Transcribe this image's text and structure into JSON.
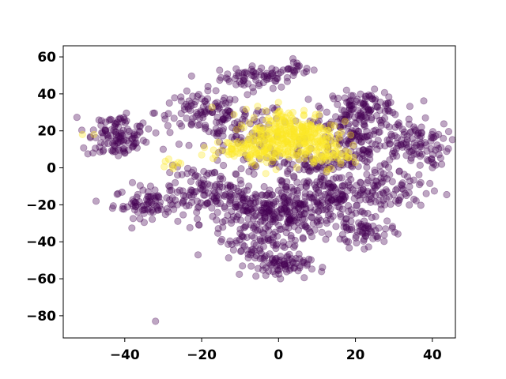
{
  "chart_data": {
    "type": "scatter",
    "title": "",
    "xlabel": "",
    "ylabel": "",
    "xlim": [
      -56,
      46
    ],
    "ylim": [
      -92,
      66
    ],
    "x_ticks": [
      -40,
      -20,
      0,
      20,
      40
    ],
    "y_ticks": [
      -80,
      -60,
      -40,
      -20,
      0,
      20,
      40,
      60
    ],
    "x_tick_labels": [
      "−40",
      "−20",
      "0",
      "20",
      "40"
    ],
    "y_tick_labels": [
      "−80",
      "−60",
      "−40",
      "−20",
      "0",
      "20",
      "40",
      "60"
    ],
    "grid": false,
    "legend": "none",
    "marker_alpha": 0.35,
    "series": [
      {
        "color": "#440154",
        "count": 1700,
        "clusters": [
          {
            "cx": -5,
            "cy": 49,
            "sx": 5,
            "sy": 3,
            "n": 70
          },
          {
            "cx": 5,
            "cy": 54,
            "sx": 2,
            "sy": 2,
            "n": 15
          },
          {
            "cx": -42,
            "cy": 15,
            "sx": 4,
            "sy": 5,
            "n": 90
          },
          {
            "cx": -42,
            "cy": 25,
            "sx": 3,
            "sy": 2,
            "n": 25
          },
          {
            "cx": -33,
            "cy": -19,
            "sx": 5,
            "sy": 4,
            "n": 90
          },
          {
            "cx": -20,
            "cy": 30,
            "sx": 6,
            "sy": 6,
            "n": 90
          },
          {
            "cx": -10,
            "cy": 20,
            "sx": 6,
            "sy": 8,
            "n": 80
          },
          {
            "cx": 22,
            "cy": 33,
            "sx": 5,
            "sy": 4,
            "n": 100
          },
          {
            "cx": 20,
            "cy": 15,
            "sx": 7,
            "sy": 9,
            "n": 160
          },
          {
            "cx": 35,
            "cy": 13,
            "sx": 5,
            "sy": 6,
            "n": 90
          },
          {
            "cx": -5,
            "cy": -22,
            "sx": 7,
            "sy": 7,
            "n": 170
          },
          {
            "cx": -18,
            "cy": -12,
            "sx": 6,
            "sy": 6,
            "n": 90
          },
          {
            "cx": 5,
            "cy": -25,
            "sx": 7,
            "sy": 6,
            "n": 120
          },
          {
            "cx": 15,
            "cy": -15,
            "sx": 7,
            "sy": 7,
            "n": 140
          },
          {
            "cx": 22,
            "cy": -35,
            "sx": 4,
            "sy": 4,
            "n": 60
          },
          {
            "cx": -5,
            "cy": -40,
            "sx": 6,
            "sy": 6,
            "n": 80
          },
          {
            "cx": 0,
            "cy": -53,
            "sx": 4,
            "sy": 3,
            "n": 70
          },
          {
            "cx": 28,
            "cy": -12,
            "sx": 6,
            "sy": 6,
            "n": 70
          },
          {
            "cx": 5,
            "cy": 2,
            "sx": 8,
            "sy": 4,
            "n": 80
          }
        ],
        "outliers": [
          [
            -32,
            -83
          ],
          [
            -38,
            -8
          ],
          [
            -45,
            20
          ],
          [
            37,
            -8
          ],
          [
            40,
            3
          ],
          [
            -30,
            10
          ]
        ]
      },
      {
        "color": "#fde725",
        "count": 480,
        "clusters": [
          {
            "cx": 3,
            "cy": 18,
            "sx": 6,
            "sy": 7,
            "n": 300
          },
          {
            "cx": -7,
            "cy": 10,
            "sx": 5,
            "sy": 3,
            "n": 80
          },
          {
            "cx": 12,
            "cy": 8,
            "sx": 3,
            "sy": 4,
            "n": 60
          },
          {
            "cx": -27,
            "cy": 2,
            "sx": 1.5,
            "sy": 1.5,
            "n": 8
          }
        ],
        "outliers": [
          [
            -51,
            18
          ],
          [
            -48,
            18
          ],
          [
            -20,
            7
          ]
        ]
      }
    ]
  }
}
